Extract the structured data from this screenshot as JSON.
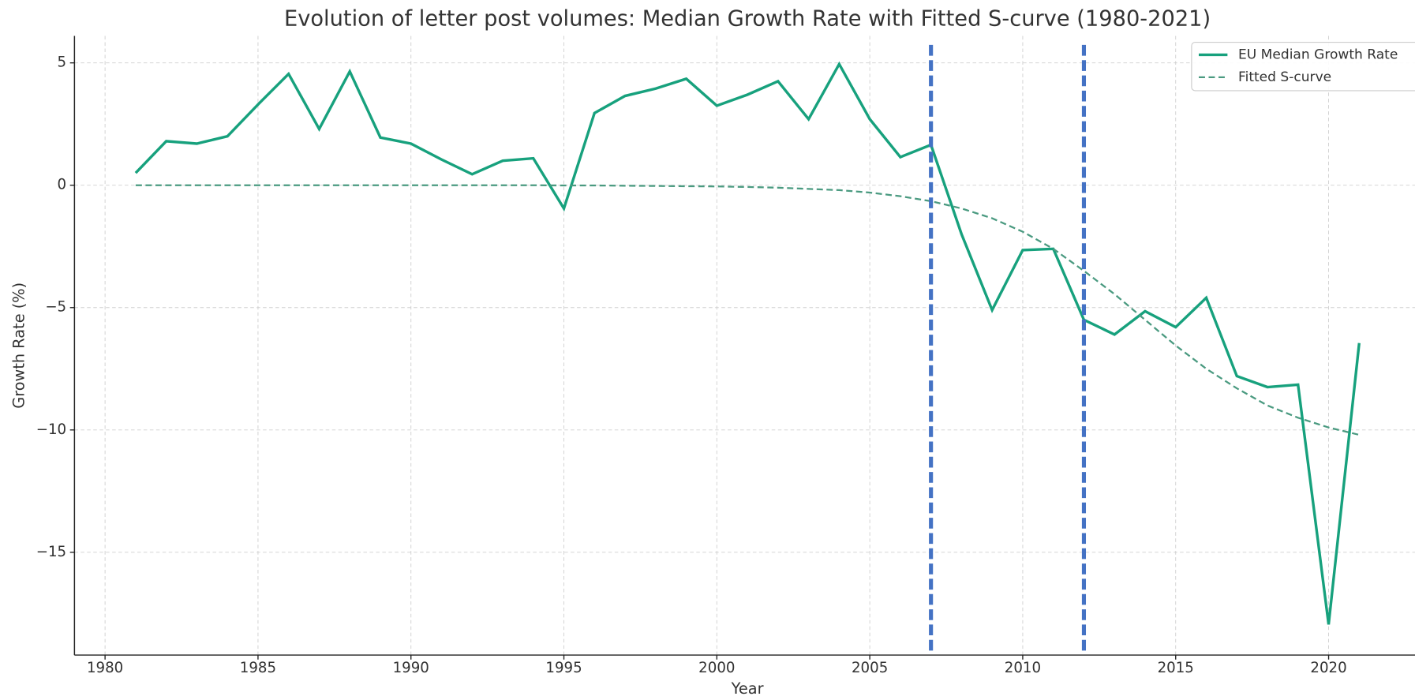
{
  "chart_data": {
    "type": "line",
    "title": "Evolution of letter post volumes: Median Growth Rate with Fitted S-curve (1980-2021)",
    "xlabel": "Year",
    "ylabel": "Growth Rate (%)",
    "x": [
      1981,
      1982,
      1983,
      1984,
      1985,
      1986,
      1987,
      1988,
      1989,
      1990,
      1991,
      1992,
      1993,
      1994,
      1995,
      1996,
      1997,
      1998,
      1999,
      2000,
      2001,
      2002,
      2003,
      2004,
      2005,
      2006,
      2007,
      2008,
      2009,
      2010,
      2011,
      2012,
      2013,
      2014,
      2015,
      2016,
      2017,
      2018,
      2019,
      2020,
      2021
    ],
    "series": [
      {
        "name": "EU Median Growth Rate",
        "color": "#17a17d",
        "style": "solid",
        "values": [
          0.5,
          1.8,
          1.7,
          2.0,
          3.3,
          4.55,
          2.3,
          4.65,
          1.95,
          1.7,
          1.05,
          0.45,
          1.0,
          1.1,
          -0.95,
          2.95,
          3.65,
          3.95,
          4.35,
          3.25,
          3.7,
          4.25,
          2.7,
          4.95,
          2.7,
          1.15,
          1.65,
          -2.0,
          -5.1,
          -2.65,
          -2.6,
          -5.5,
          -6.1,
          -5.15,
          -5.8,
          -4.6,
          -7.8,
          -8.25,
          -8.15,
          -17.95,
          -6.45
        ]
      },
      {
        "name": "Fitted S-curve",
        "color": "#4a9a80",
        "style": "dashed",
        "values": [
          0,
          0,
          0,
          0,
          0,
          0,
          0,
          0,
          0,
          0,
          0,
          0,
          0,
          0,
          -0.01,
          -0.01,
          -0.02,
          -0.03,
          -0.04,
          -0.05,
          -0.07,
          -0.1,
          -0.15,
          -0.2,
          -0.3,
          -0.45,
          -0.65,
          -0.95,
          -1.35,
          -1.9,
          -2.6,
          -3.5,
          -4.45,
          -5.5,
          -6.55,
          -7.5,
          -8.3,
          -9.0,
          -9.5,
          -9.9,
          -10.2
        ]
      }
    ],
    "vlines": [
      2007,
      2012
    ],
    "vline_color": "#4472c4",
    "xlim": [
      1979,
      2023
    ],
    "ylim": [
      -19.2,
      6.1
    ],
    "xticks": [
      1980,
      1985,
      1990,
      1995,
      2000,
      2005,
      2010,
      2015,
      2020
    ],
    "yticks": [
      {
        "value": -15,
        "label": "−15"
      },
      {
        "value": -10,
        "label": "−10"
      },
      {
        "value": -5,
        "label": "−5"
      },
      0,
      5
    ],
    "grid": true,
    "legend": "upper right"
  }
}
